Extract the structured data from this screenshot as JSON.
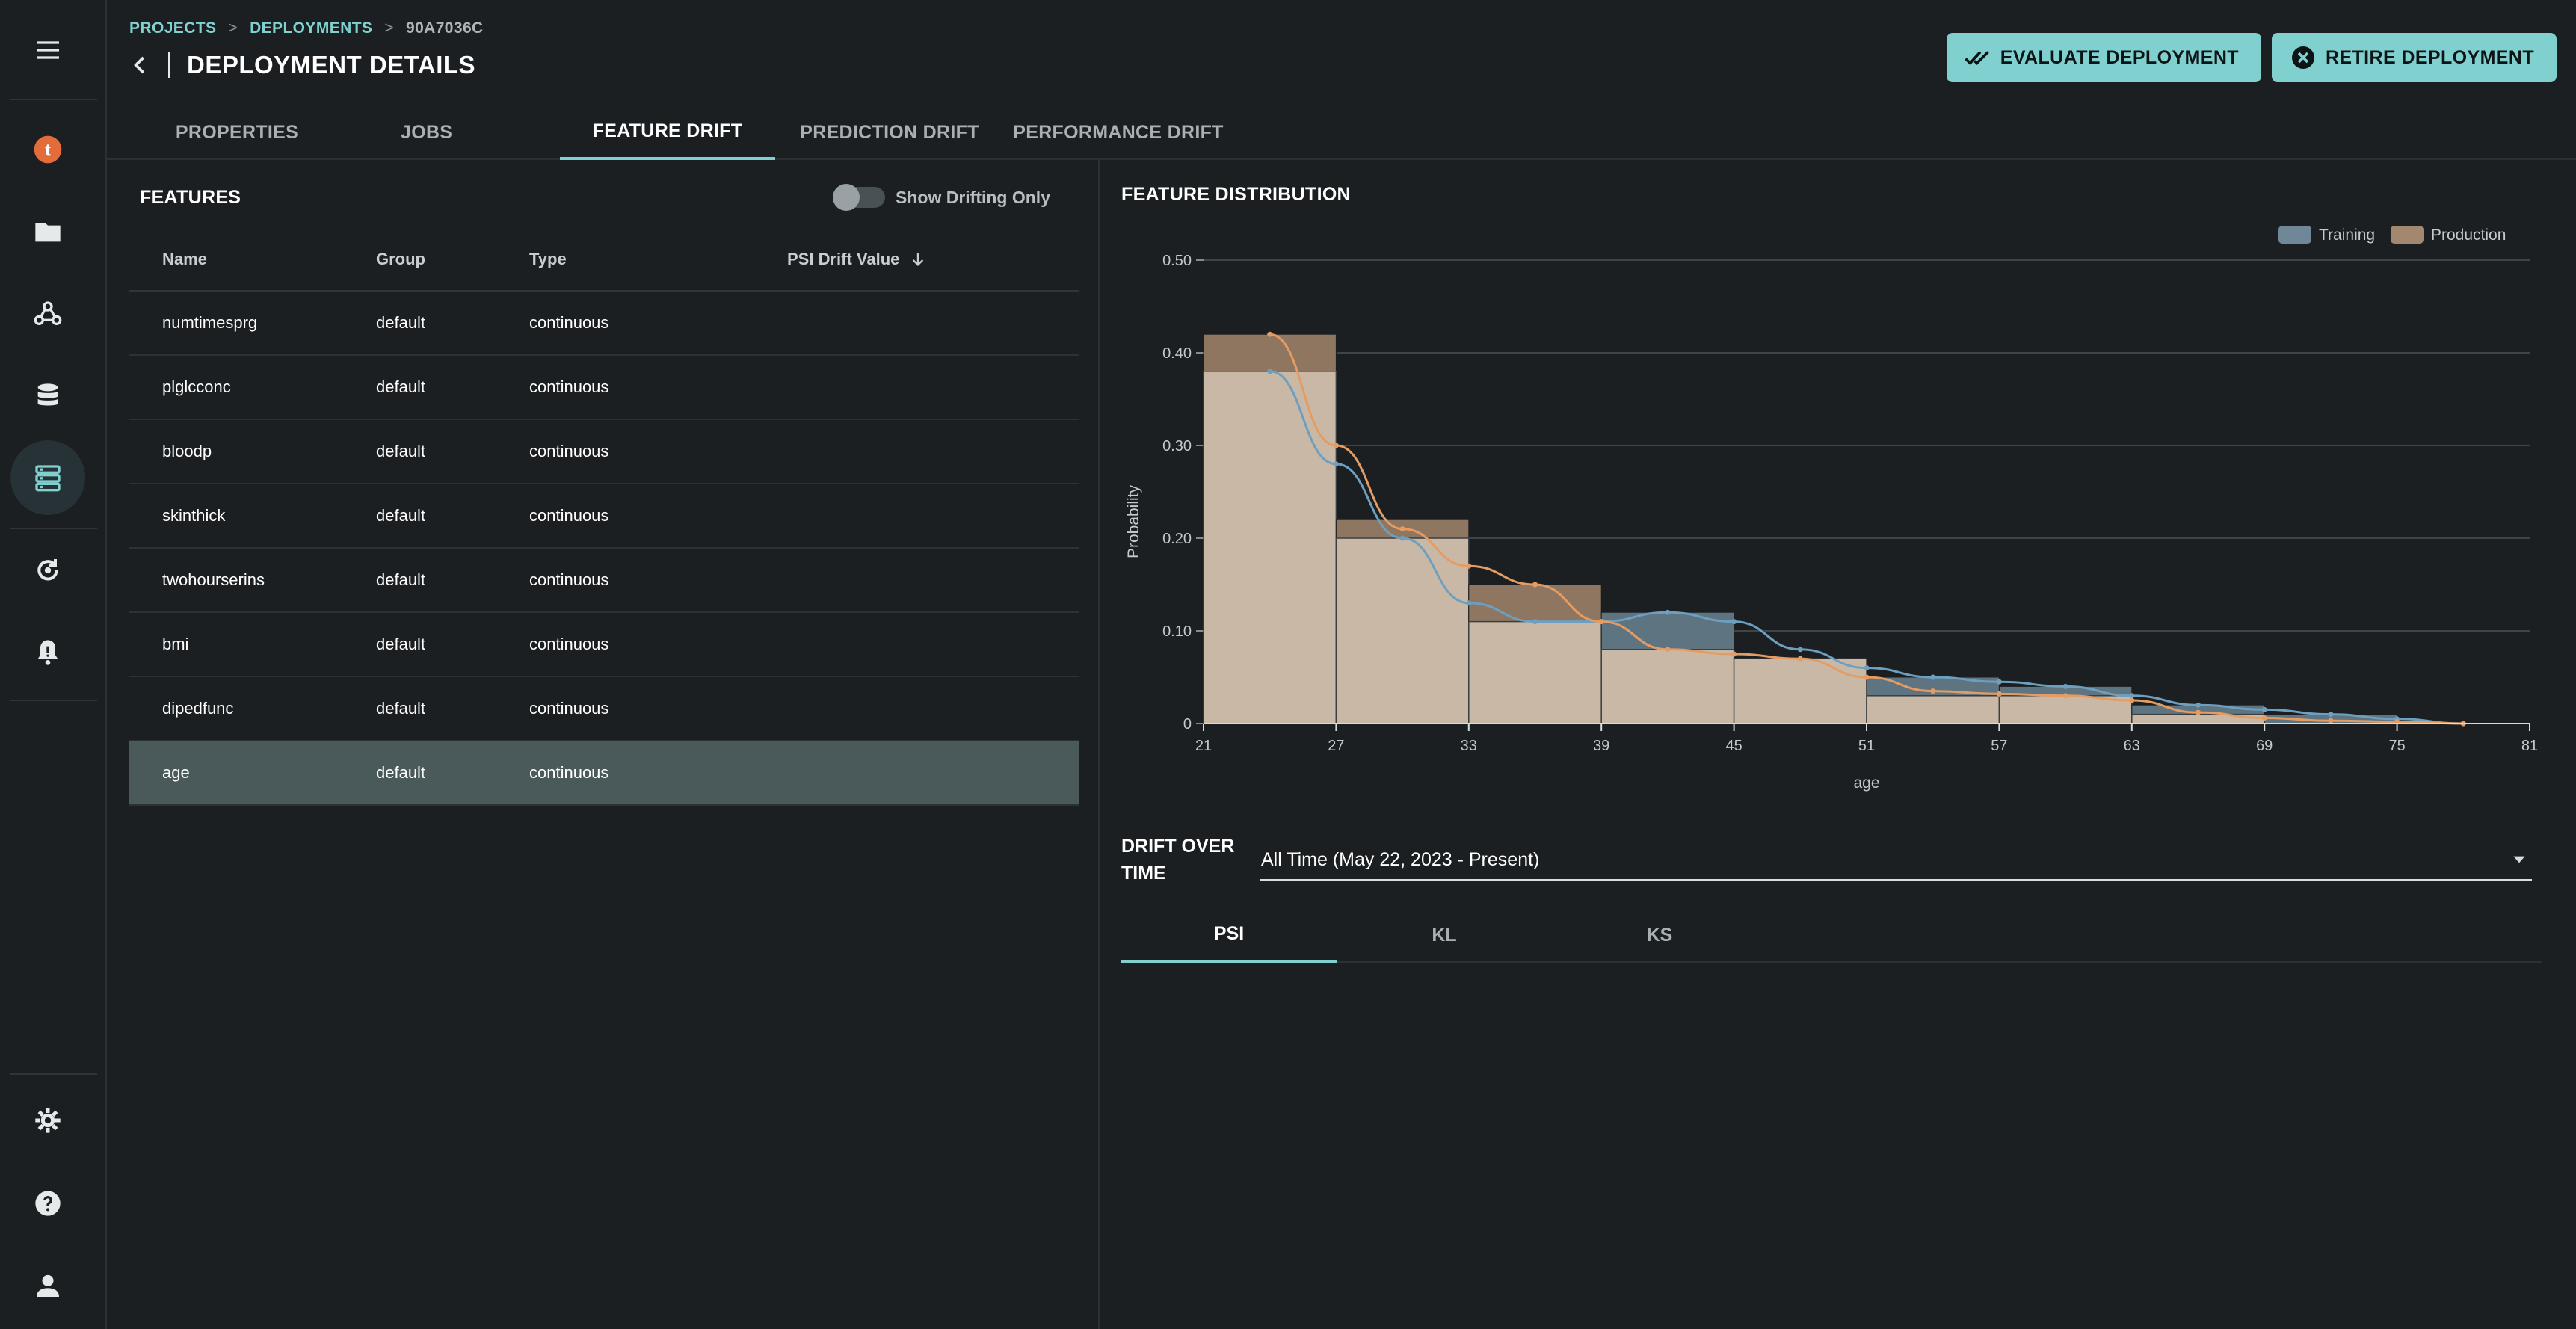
{
  "sidebar": {
    "items": [
      {
        "icon": "menu-icon"
      },
      {
        "icon": "tenant-logo-icon",
        "letter": "t"
      },
      {
        "icon": "folder-icon"
      },
      {
        "icon": "webhook-icon"
      },
      {
        "icon": "database-icon"
      },
      {
        "icon": "server-stack-icon"
      },
      {
        "icon": "refresh-cycle-icon"
      },
      {
        "icon": "alert-bell-icon"
      },
      {
        "icon": "gear-icon"
      },
      {
        "icon": "help-icon"
      },
      {
        "icon": "user-icon"
      }
    ]
  },
  "breadcrumb": {
    "projects": "PROJECTS",
    "deployments": "DEPLOYMENTS",
    "current": "90A7036C",
    "separator": ">"
  },
  "page_title": "DEPLOYMENT DETAILS",
  "actions": {
    "evaluate": "EVALUATE DEPLOYMENT",
    "retire": "RETIRE DEPLOYMENT"
  },
  "tabs": [
    "PROPERTIES",
    "JOBS",
    "FEATURE DRIFT",
    "PREDICTION DRIFT",
    "PERFORMANCE DRIFT"
  ],
  "active_tab": "FEATURE DRIFT",
  "features": {
    "title": "FEATURES",
    "toggle_label": "Show Drifting Only",
    "columns": [
      "Name",
      "Group",
      "Type",
      "PSI Drift Value"
    ],
    "rows": [
      [
        "numtimesprg",
        "default",
        "continuous",
        ""
      ],
      [
        "plglcconc",
        "default",
        "continuous",
        ""
      ],
      [
        "bloodp",
        "default",
        "continuous",
        ""
      ],
      [
        "skinthick",
        "default",
        "continuous",
        ""
      ],
      [
        "twohourserins",
        "default",
        "continuous",
        ""
      ],
      [
        "bmi",
        "default",
        "continuous",
        ""
      ],
      [
        "dipedfunc",
        "default",
        "continuous",
        ""
      ],
      [
        "age",
        "default",
        "continuous",
        ""
      ]
    ],
    "selected": "age"
  },
  "distribution": {
    "title": "FEATURE DISTRIBUTION"
  },
  "chart_data": {
    "type": "bar",
    "xlabel": "age",
    "ylabel": "Probability",
    "xticks": [
      "21",
      "27",
      "33",
      "39",
      "45",
      "51",
      "57",
      "63",
      "69",
      "75",
      "81"
    ],
    "yticks": [
      "0",
      "0.10",
      "0.20",
      "0.30",
      "0.40",
      "0.50"
    ],
    "ylim": [
      0,
      0.5
    ],
    "xlim": [
      21,
      81
    ],
    "bin_edges": [
      21,
      27,
      33,
      39,
      45,
      51,
      57,
      63,
      69,
      75,
      81
    ],
    "legend_position": "top-right",
    "series": [
      {
        "name": "Training",
        "color": "#6f8796",
        "line_color": "#6d9fc0",
        "values": [
          0.38,
          0.2,
          0.11,
          0.12,
          0.07,
          0.05,
          0.04,
          0.02,
          0.01,
          0.0
        ],
        "curve_x": [
          24,
          27,
          30,
          33,
          36,
          39,
          42,
          45,
          48,
          51,
          54,
          57,
          60,
          63,
          66,
          69,
          72,
          75,
          78
        ],
        "curve_y": [
          0.38,
          0.28,
          0.2,
          0.13,
          0.11,
          0.11,
          0.12,
          0.11,
          0.08,
          0.06,
          0.05,
          0.045,
          0.04,
          0.03,
          0.02,
          0.015,
          0.01,
          0.005,
          0.0
        ]
      },
      {
        "name": "Production",
        "color": "#a3876e",
        "line_color": "#e59c63",
        "values": [
          0.42,
          0.22,
          0.15,
          0.08,
          0.07,
          0.03,
          0.03,
          0.01,
          0.0,
          0.0
        ],
        "curve_x": [
          24,
          27,
          30,
          33,
          36,
          39,
          42,
          45,
          48,
          51,
          54,
          57,
          60,
          63,
          66,
          69,
          72,
          75,
          78
        ],
        "curve_y": [
          0.42,
          0.3,
          0.21,
          0.17,
          0.15,
          0.11,
          0.08,
          0.075,
          0.07,
          0.05,
          0.035,
          0.032,
          0.03,
          0.025,
          0.012,
          0.006,
          0.003,
          0.002,
          0.0
        ]
      }
    ]
  },
  "drift_over_time": {
    "title": "DRIFT OVER TIME",
    "period": "All Time (May 22, 2023 - Present)",
    "tabs": [
      "PSI",
      "KL",
      "KS"
    ],
    "active": "PSI"
  },
  "colors": {
    "accent": "#7fd0cf",
    "background": "#1b1f21",
    "selected_row": "#4a5a5a",
    "tenant_logo": "#e36c3a"
  }
}
